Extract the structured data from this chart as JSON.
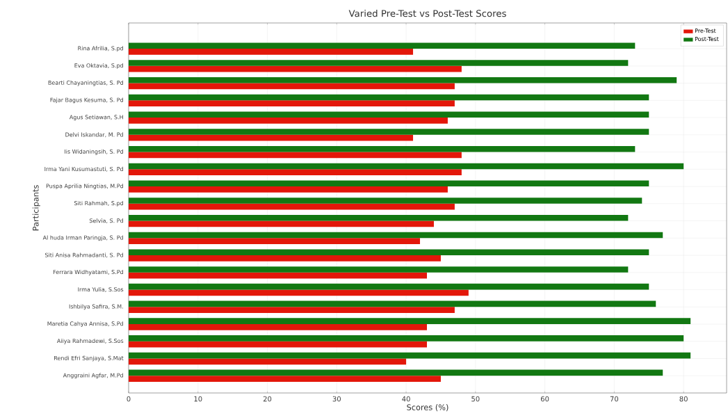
{
  "chart_data": {
    "type": "bar",
    "orientation": "horizontal",
    "title": "Varied Pre-Test vs Post-Test Scores",
    "xlabel": "Scores (%)",
    "ylabel": "Participants",
    "categories": [
      "Rina Afrilia, S.pd",
      "Eva Oktavia, S.pd",
      "Bearti Chayaningtias, S. Pd",
      "Fajar Bagus Kesuma, S. Pd",
      "Agus Setiawan, S.H",
      "Delvi Iskandar, M. Pd",
      "Iis Widaningsih, S. Pd",
      "Irma Yani Kusumastuti, S. Pd",
      "Puspa Aprilia Ningtias, M.Pd",
      "Siti Rahmah, S.pd",
      "Selvia, S. Pd",
      "Al huda Irman Paringja, S. Pd",
      "Siti Anisa Rahmadanti, S. Pd",
      "Ferrara Widhyatami, S.Pd",
      "Irma Yulia, S.Sos",
      "Ishbilya Safira, S.M.",
      "Maretia Cahya Annisa, S.Pd",
      "Aiiya Rahmadewi, S.Sos",
      "Rendi Efri Sanjaya, S.Mat",
      "Anggraini Agfar, M.Pd"
    ],
    "series": [
      {
        "name": "Pre-Test",
        "color": "#e3170a",
        "values": [
          41,
          48,
          47,
          47,
          46,
          41,
          48,
          48,
          46,
          47,
          44,
          42,
          45,
          43,
          49,
          47,
          43,
          43,
          40,
          45
        ]
      },
      {
        "name": "Post-Test",
        "color": "#127812",
        "values": [
          73,
          72,
          79,
          75,
          75,
          75,
          73,
          80,
          75,
          74,
          72,
          77,
          75,
          72,
          75,
          76,
          81,
          80,
          81,
          77
        ]
      }
    ],
    "xlim": [
      0,
      86.2
    ],
    "xticks": [
      0,
      10,
      20,
      30,
      40,
      50,
      60,
      70,
      80
    ],
    "grid": true,
    "legend": "top right"
  }
}
